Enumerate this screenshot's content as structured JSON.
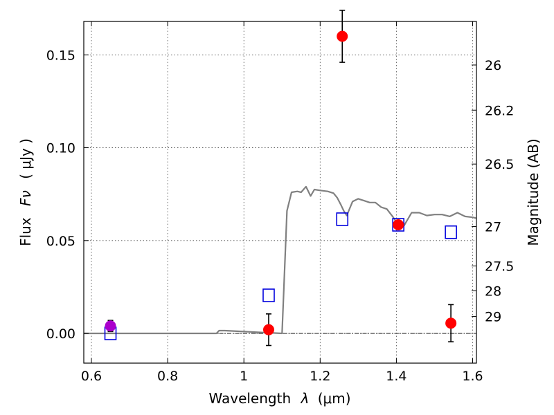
{
  "chart_data": {
    "type": "scatter",
    "xlabel_prefix": "Wavelength",
    "xlabel_symbol": "λ",
    "xlabel_unit": "(μm)",
    "ylabel_prefix": "Flux",
    "ylabel_symbol": "Fν",
    "ylabel_unit": "( μJy )",
    "y2label": "Magnitude (AB)",
    "xlim": [
      0.58,
      1.61
    ],
    "ylim": [
      -0.016,
      0.168
    ],
    "x_ticks": [
      0.6,
      0.8,
      1.0,
      1.2,
      1.4,
      1.6
    ],
    "x_tick_labels": [
      "0.6",
      "0.8",
      "1",
      "1.2",
      "1.4",
      "1.6"
    ],
    "y_ticks": [
      0.0,
      0.05,
      0.1,
      0.15
    ],
    "y_tick_labels": [
      "0.00",
      "0.05",
      "0.10",
      "0.15"
    ],
    "y2_ticks": [
      {
        "label": "26",
        "mag": 26.0
      },
      {
        "label": "26.2",
        "mag": 26.2
      },
      {
        "label": "26.5",
        "mag": 26.5
      },
      {
        "label": "27",
        "mag": 27.0
      },
      {
        "label": "27.5",
        "mag": 27.5
      },
      {
        "label": "28",
        "mag": 28.0
      },
      {
        "label": "29",
        "mag": 29.0
      }
    ],
    "grid": true,
    "colors": {
      "observed": "#ff0000",
      "detected": "#aa00cc",
      "model_points": "#0000dd",
      "model_line": "#808080",
      "zero_line": "#000000",
      "errorbar": "#000000"
    },
    "model_sed": {
      "x": [
        0.58,
        0.7,
        0.85,
        0.928,
        0.935,
        0.95,
        1.0,
        1.05,
        1.1,
        1.113,
        1.125,
        1.14,
        1.15,
        1.163,
        1.175,
        1.185,
        1.2,
        1.22,
        1.235,
        1.245,
        1.255,
        1.262,
        1.27,
        1.285,
        1.3,
        1.315,
        1.33,
        1.345,
        1.36,
        1.375,
        1.39,
        1.4,
        1.41,
        1.42,
        1.44,
        1.46,
        1.48,
        1.5,
        1.52,
        1.54,
        1.56,
        1.58,
        1.6,
        1.61
      ],
      "y": [
        0.0,
        0.0,
        0.0,
        0.0,
        0.0015,
        0.0015,
        0.001,
        0.0005,
        0.0,
        0.066,
        0.076,
        0.0765,
        0.076,
        0.079,
        0.074,
        0.0775,
        0.077,
        0.0765,
        0.0755,
        0.073,
        0.069,
        0.066,
        0.0635,
        0.071,
        0.0725,
        0.0715,
        0.0705,
        0.0705,
        0.068,
        0.067,
        0.063,
        0.06,
        0.059,
        0.058,
        0.065,
        0.065,
        0.0635,
        0.064,
        0.064,
        0.063,
        0.065,
        0.063,
        0.0625,
        0.062
      ]
    },
    "model_photometry": [
      {
        "x": 0.65,
        "y": 0.0
      },
      {
        "x": 1.065,
        "y": 0.0205
      },
      {
        "x": 1.258,
        "y": 0.0615
      },
      {
        "x": 1.405,
        "y": 0.0585
      },
      {
        "x": 1.543,
        "y": 0.0545
      }
    ],
    "observed": [
      {
        "x": 0.65,
        "y": 0.004,
        "yerr": 0.003,
        "kind": "detected"
      },
      {
        "x": 1.065,
        "y": 0.002,
        "yerr": 0.0085,
        "kind": "observed"
      },
      {
        "x": 1.258,
        "y": 0.16,
        "yerr": 0.014,
        "kind": "observed"
      },
      {
        "x": 1.405,
        "y": 0.0585,
        "yerr": 0.0,
        "kind": "observed"
      },
      {
        "x": 1.543,
        "y": 0.0055,
        "yerr": 0.01,
        "kind": "observed"
      }
    ]
  }
}
